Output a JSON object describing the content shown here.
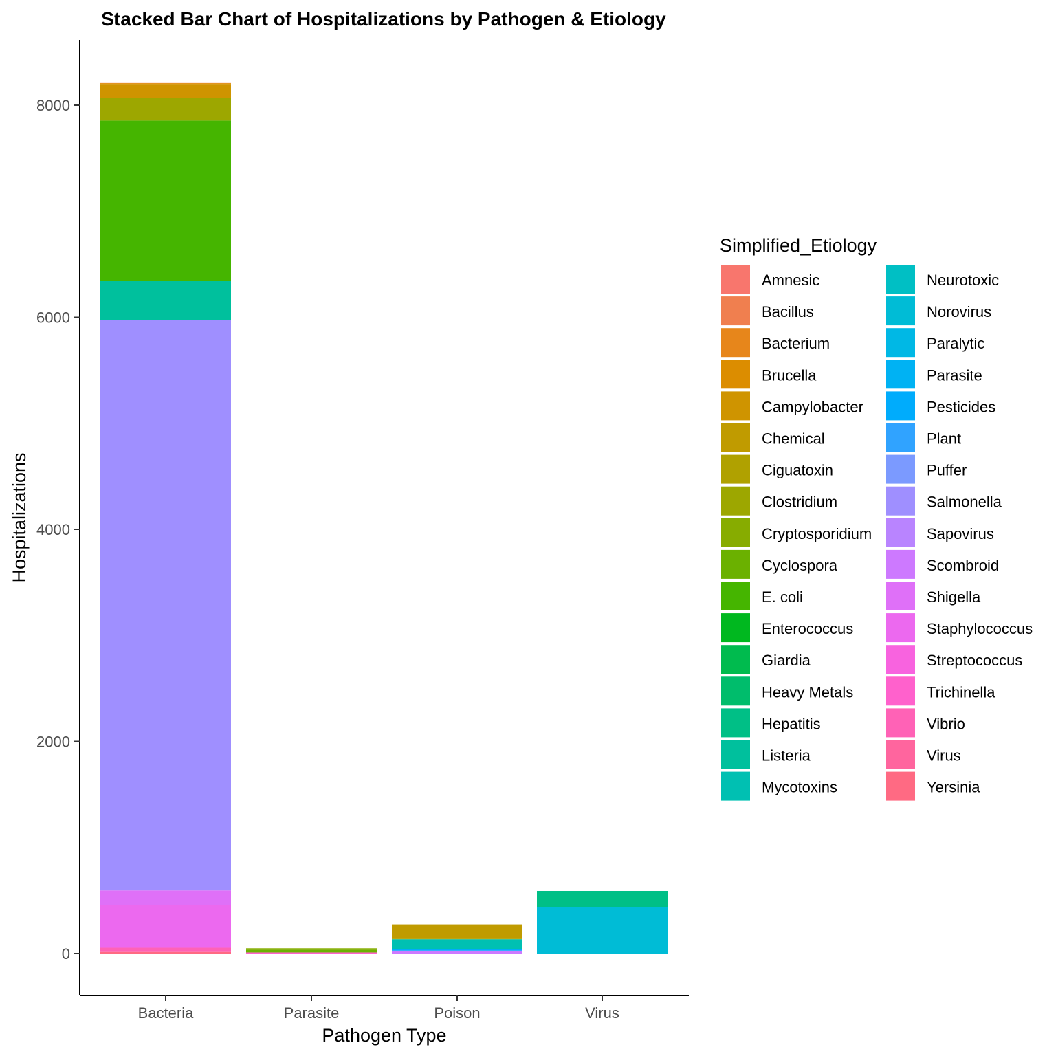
{
  "chart_data": {
    "type": "bar",
    "stacked": true,
    "title": "Stacked Bar Chart of Hospitalizations by Pathogen & Etiology",
    "xlabel": "Pathogen Type",
    "ylabel": "Hospitalizations",
    "categories": [
      "Bacteria",
      "Parasite",
      "Poison",
      "Virus"
    ],
    "yticks": [
      0,
      2000,
      4000,
      6000,
      8000
    ],
    "ylim": [
      -400,
      8600
    ],
    "grid": false,
    "legend": {
      "title": "Simplified_Etiology",
      "position": "right",
      "columns": 2
    },
    "series": [
      {
        "name": "Amnesic",
        "color": "#F8766D",
        "values": [
          0,
          0,
          0,
          0
        ]
      },
      {
        "name": "Bacillus",
        "color": "#F07F4F",
        "values": [
          5,
          0,
          0,
          0
        ]
      },
      {
        "name": "Bacterium",
        "color": "#E7861B",
        "values": [
          5,
          0,
          0,
          0
        ]
      },
      {
        "name": "Brucella",
        "color": "#DC8D00",
        "values": [
          5,
          0,
          0,
          0
        ]
      },
      {
        "name": "Campylobacter",
        "color": "#CF9400",
        "values": [
          130,
          0,
          0,
          0
        ]
      },
      {
        "name": "Chemical",
        "color": "#C09B00",
        "values": [
          0,
          0,
          135,
          0
        ]
      },
      {
        "name": "Ciguatoxin",
        "color": "#B0A100",
        "values": [
          0,
          0,
          5,
          0
        ]
      },
      {
        "name": "Clostridium",
        "color": "#9DA700",
        "values": [
          215,
          0,
          0,
          0
        ]
      },
      {
        "name": "Cryptosporidium",
        "color": "#87AC00",
        "values": [
          0,
          15,
          0,
          0
        ]
      },
      {
        "name": "Cyclospora",
        "color": "#6BB100",
        "values": [
          0,
          25,
          0,
          0
        ]
      },
      {
        "name": "E. coli",
        "color": "#45B500",
        "values": [
          1510,
          0,
          0,
          0
        ]
      },
      {
        "name": "Enterococcus",
        "color": "#00B81F",
        "values": [
          0,
          0,
          0,
          0
        ]
      },
      {
        "name": "Giardia",
        "color": "#00BB4E",
        "values": [
          0,
          0,
          0,
          0
        ]
      },
      {
        "name": "Heavy Metals",
        "color": "#00BD6C",
        "values": [
          0,
          0,
          0,
          0
        ]
      },
      {
        "name": "Hepatitis",
        "color": "#00BF86",
        "values": [
          0,
          0,
          0,
          150
        ]
      },
      {
        "name": "Listeria",
        "color": "#00C09D",
        "values": [
          370,
          0,
          0,
          0
        ]
      },
      {
        "name": "Mycotoxins",
        "color": "#00C0B2",
        "values": [
          0,
          0,
          95,
          0
        ]
      },
      {
        "name": "Neurotoxic",
        "color": "#00BFC4",
        "values": [
          0,
          0,
          0,
          0
        ]
      },
      {
        "name": "Norovirus",
        "color": "#00BCD6",
        "values": [
          0,
          0,
          0,
          440
        ]
      },
      {
        "name": "Paralytic",
        "color": "#00B8E5",
        "values": [
          0,
          0,
          0,
          0
        ]
      },
      {
        "name": "Parasite",
        "color": "#00B2F3",
        "values": [
          0,
          0,
          0,
          0
        ]
      },
      {
        "name": "Pesticides",
        "color": "#00ACFC",
        "values": [
          0,
          0,
          10,
          0
        ]
      },
      {
        "name": "Plant",
        "color": "#30A3FF",
        "values": [
          0,
          0,
          5,
          0
        ]
      },
      {
        "name": "Puffer",
        "color": "#7B9AFF",
        "values": [
          0,
          0,
          0,
          0
        ]
      },
      {
        "name": "Salmonella",
        "color": "#9F8FFF",
        "values": [
          5380,
          0,
          0,
          0
        ]
      },
      {
        "name": "Sapovirus",
        "color": "#B984FF",
        "values": [
          0,
          0,
          0,
          0
        ]
      },
      {
        "name": "Scombroid",
        "color": "#CD79FF",
        "values": [
          0,
          0,
          25,
          0
        ]
      },
      {
        "name": "Shigella",
        "color": "#DF70F8",
        "values": [
          140,
          0,
          0,
          0
        ]
      },
      {
        "name": "Staphylococcus",
        "color": "#EC69EF",
        "values": [
          400,
          0,
          0,
          0
        ]
      },
      {
        "name": "Streptococcus",
        "color": "#F863DF",
        "values": [
          0,
          0,
          0,
          0
        ]
      },
      {
        "name": "Trichinella",
        "color": "#FF61CC",
        "values": [
          0,
          10,
          0,
          0
        ]
      },
      {
        "name": "Vibrio",
        "color": "#FF62B6",
        "values": [
          40,
          0,
          0,
          0
        ]
      },
      {
        "name": "Virus",
        "color": "#FF659E",
        "values": [
          0,
          0,
          0,
          0
        ]
      },
      {
        "name": "Yersinia",
        "color": "#FF6A83",
        "values": [
          15,
          0,
          0,
          0
        ]
      }
    ]
  }
}
